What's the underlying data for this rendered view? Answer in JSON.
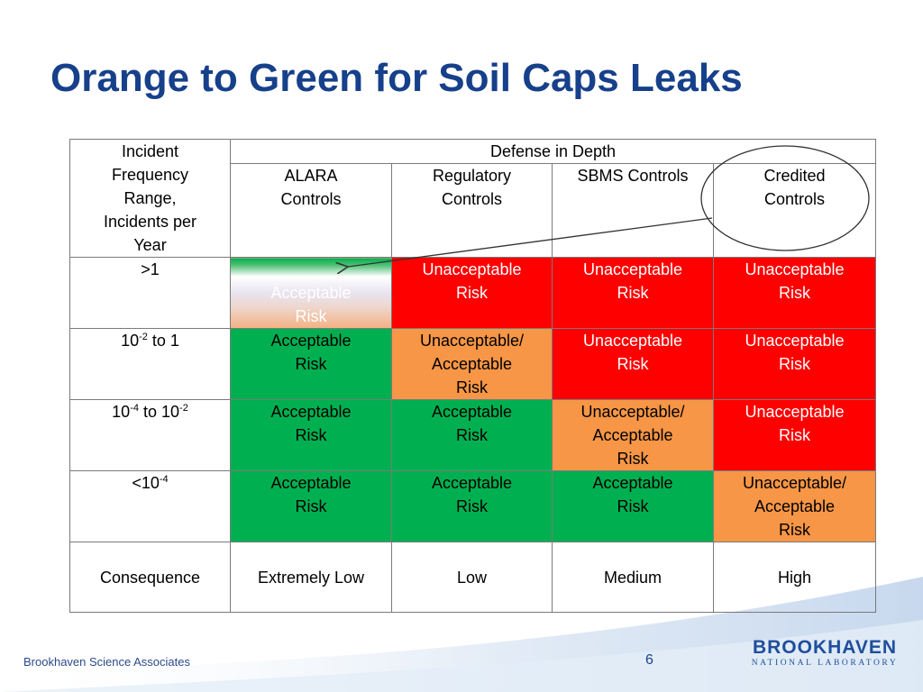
{
  "slide": {
    "title": "Orange to Green for Soil Caps Leaks",
    "page_number": "6",
    "footer_org": "Brookhaven Science Associates",
    "logo_main": "BROOKHAVEN",
    "logo_sub": "NATIONAL LABORATORY"
  },
  "table": {
    "corner_header": [
      "Incident",
      "Frequency",
      "Range,",
      "Incidents per",
      "Year"
    ],
    "group_header": "Defense in Depth",
    "columns": [
      [
        "ALARA",
        "Controls"
      ],
      [
        "Regulatory",
        "Controls"
      ],
      [
        "SBMS Controls"
      ],
      [
        "Credited",
        "Controls"
      ]
    ],
    "rows": [
      {
        "freq_base": ">1",
        "freq_exp": "",
        "freq_mid": "",
        "freq_exp2": "",
        "cells": [
          {
            "color": "fade",
            "lines": [
              "Acceptable",
              "Risk"
            ]
          },
          {
            "color": "red",
            "lines": [
              "Unacceptable",
              "Risk"
            ]
          },
          {
            "color": "red",
            "lines": [
              "Unacceptable",
              "Risk"
            ]
          },
          {
            "color": "red",
            "lines": [
              "Unacceptable",
              "Risk"
            ]
          }
        ]
      },
      {
        "freq_base": "10",
        "freq_exp": "-2",
        "freq_mid": " to 1",
        "freq_exp2": "",
        "cells": [
          {
            "color": "green",
            "lines": [
              "Acceptable",
              "Risk"
            ]
          },
          {
            "color": "orange",
            "lines": [
              "Unacceptable/",
              "Acceptable",
              "Risk"
            ]
          },
          {
            "color": "red",
            "lines": [
              "Unacceptable",
              "Risk"
            ]
          },
          {
            "color": "red",
            "lines": [
              "Unacceptable",
              "Risk"
            ]
          }
        ]
      },
      {
        "freq_base": "10",
        "freq_exp": "-4",
        "freq_mid": " to 10",
        "freq_exp2": "-2",
        "cells": [
          {
            "color": "green",
            "lines": [
              "Acceptable",
              "Risk"
            ]
          },
          {
            "color": "green",
            "lines": [
              "Acceptable",
              "Risk"
            ]
          },
          {
            "color": "orange",
            "lines": [
              "Unacceptable/",
              "Acceptable",
              "Risk"
            ]
          },
          {
            "color": "red",
            "lines": [
              "Unacceptable",
              "Risk"
            ]
          }
        ]
      },
      {
        "freq_base": "<10",
        "freq_exp": "-4",
        "freq_mid": "",
        "freq_exp2": "",
        "cells": [
          {
            "color": "green",
            "lines": [
              "Acceptable",
              "Risk"
            ]
          },
          {
            "color": "green",
            "lines": [
              "Acceptable",
              "Risk"
            ]
          },
          {
            "color": "green",
            "lines": [
              "Acceptable",
              "Risk"
            ]
          },
          {
            "color": "orange",
            "lines": [
              "Unacceptable/",
              "Acceptable",
              "Risk"
            ]
          }
        ]
      }
    ],
    "consequence_label": "Consequence",
    "consequences": [
      "Extremely Low",
      "Low",
      "Medium",
      "High"
    ]
  },
  "colors": {
    "title": "#17408b",
    "acceptable": "#00b050",
    "unacceptable": "#ff0000",
    "marginal": "#f79646"
  }
}
